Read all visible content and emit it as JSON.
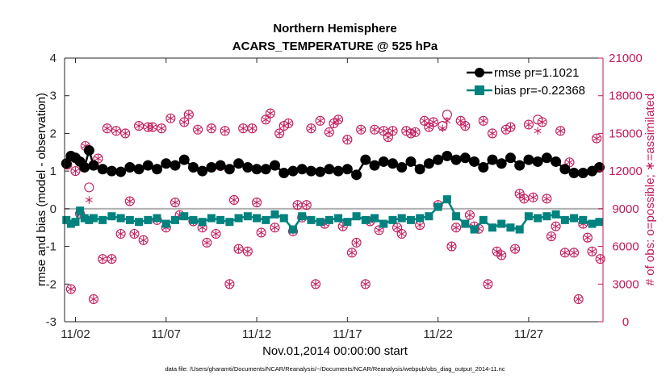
{
  "colors": {
    "rmse": "#000000",
    "bias": "#00827f",
    "obs": "#c2185b",
    "zero_line": "#b0b0b0",
    "axis": "#262626"
  },
  "chart_data": {
    "type": "line",
    "title": "Northern Hemisphere",
    "subtitle": "ACARS_TEMPERATURE @ 525 hPa",
    "xlabel": "Nov.01,2014 00:00:00 start",
    "ylabel": "rmse and bias (model - observation)",
    "ylabel_right": "# of obs: o=possible; ∗=assimilated",
    "footnote": "data file: /Users/gharamti/Documents/NCAR/Reanalysis/~/Documents/NCAR/Reanalysis/webpub/obs_diag_output_2014-11.nc",
    "x_unit": "days since Nov.01,2014 00:00:00",
    "xlim": [
      0.4,
      30.1
    ],
    "ylim": [
      -3,
      4
    ],
    "y2lim": [
      0,
      21000
    ],
    "x_ticks": [
      1,
      6,
      11,
      16,
      21,
      26
    ],
    "x_tick_labels": [
      "11/02",
      "11/07",
      "11/12",
      "11/17",
      "11/22",
      "11/27"
    ],
    "y_ticks": [
      -3,
      -2,
      -1,
      0,
      1,
      2,
      3,
      4
    ],
    "y_tick_labels": [
      "-3",
      "-2",
      "-1",
      "0",
      "1",
      "2",
      "3",
      "4"
    ],
    "y2_ticks": [
      0,
      3000,
      6000,
      9000,
      12000,
      15000,
      18000,
      21000
    ],
    "y2_tick_labels": [
      "0",
      "3000",
      "6000",
      "9000",
      "12000",
      "15000",
      "18000",
      "21000"
    ],
    "legend": {
      "location": "top-right",
      "entries": [
        "rmse pr=1.1021",
        "bias pr=-0.22368"
      ]
    },
    "series": [
      {
        "name": "rmse pr=1.1021",
        "marker": "circle",
        "x": [
          0.5,
          0.75,
          1.0,
          1.25,
          1.5,
          1.75,
          2.0,
          2.5,
          3.0,
          3.5,
          4.0,
          4.5,
          5.0,
          5.5,
          6.0,
          6.5,
          7.0,
          7.5,
          8.0,
          8.5,
          9.0,
          9.5,
          10.0,
          10.5,
          11.0,
          11.5,
          12.0,
          12.5,
          13.0,
          13.5,
          14.0,
          14.5,
          15.0,
          15.5,
          16.0,
          16.5,
          17.0,
          17.5,
          18.0,
          18.5,
          19.0,
          19.5,
          20.0,
          20.5,
          21.0,
          21.5,
          22.0,
          22.5,
          23.0,
          23.5,
          24.0,
          24.5,
          25.0,
          25.5,
          26.0,
          26.5,
          27.0,
          27.5,
          28.0,
          28.5,
          29.0,
          29.5,
          29.9
        ],
        "values": [
          1.2,
          1.4,
          1.35,
          1.25,
          1.1,
          1.55,
          1.15,
          1.05,
          1.0,
          0.98,
          1.1,
          1.05,
          1.15,
          1.05,
          1.2,
          1.15,
          1.3,
          1.1,
          1.0,
          1.1,
          1.15,
          1.05,
          1.2,
          1.1,
          1.05,
          1.05,
          1.15,
          0.95,
          1.0,
          1.05,
          1.0,
          0.98,
          1.05,
          1.0,
          1.05,
          0.9,
          1.3,
          1.15,
          1.25,
          1.2,
          1.1,
          1.25,
          1.05,
          1.2,
          1.3,
          1.4,
          1.3,
          1.35,
          1.25,
          1.1,
          1.3,
          1.2,
          1.35,
          1.15,
          1.3,
          1.25,
          1.35,
          1.25,
          1.05,
          0.95,
          0.95,
          1.0,
          1.1
        ]
      },
      {
        "name": "bias pr=-0.22368",
        "marker": "square",
        "x": [
          0.5,
          0.75,
          1.0,
          1.25,
          1.5,
          1.75,
          2.0,
          2.5,
          3.0,
          3.5,
          4.0,
          4.5,
          5.0,
          5.5,
          6.0,
          6.5,
          7.0,
          7.5,
          8.0,
          8.5,
          9.0,
          9.5,
          10.0,
          10.5,
          11.0,
          11.5,
          12.0,
          12.5,
          13.0,
          13.5,
          14.0,
          14.5,
          15.0,
          15.5,
          16.0,
          16.5,
          17.0,
          17.5,
          18.0,
          18.5,
          19.0,
          19.5,
          20.0,
          20.5,
          21.0,
          21.5,
          22.0,
          22.5,
          23.0,
          23.5,
          24.0,
          24.5,
          25.0,
          25.5,
          26.0,
          26.5,
          27.0,
          27.5,
          28.0,
          28.5,
          29.0,
          29.5,
          29.9
        ],
        "values": [
          -0.3,
          -0.4,
          -0.35,
          -0.05,
          -0.25,
          -0.3,
          -0.25,
          -0.3,
          -0.2,
          -0.25,
          -0.3,
          -0.35,
          -0.3,
          -0.25,
          -0.4,
          -0.3,
          -0.2,
          -0.3,
          -0.35,
          -0.25,
          -0.3,
          -0.35,
          -0.25,
          -0.2,
          -0.25,
          -0.3,
          -0.15,
          -0.25,
          -0.55,
          -0.2,
          -0.3,
          -0.35,
          -0.3,
          -0.25,
          -0.35,
          -0.2,
          -0.3,
          -0.25,
          -0.4,
          -0.3,
          -0.25,
          -0.3,
          -0.25,
          -0.2,
          0.05,
          0.25,
          -0.2,
          -0.4,
          -0.55,
          -0.3,
          -0.5,
          -0.4,
          -0.5,
          -0.55,
          -0.2,
          -0.25,
          -0.2,
          -0.15,
          -0.3,
          -0.25,
          -0.3,
          -0.4,
          -0.35
        ]
      },
      {
        "name": "# of obs possible",
        "marker": "circle-open",
        "axis": "right",
        "x": [
          0.55,
          0.75,
          1.0,
          1.25,
          1.55,
          1.75,
          2.0,
          2.25,
          2.5,
          2.75,
          3.0,
          3.25,
          3.5,
          3.75,
          4.0,
          4.25,
          4.5,
          4.75,
          5.0,
          5.25,
          5.5,
          5.75,
          6.0,
          6.25,
          6.5,
          6.75,
          7.0,
          7.25,
          7.5,
          7.75,
          8.0,
          8.25,
          8.5,
          8.75,
          9.0,
          9.25,
          9.5,
          9.75,
          10.0,
          10.25,
          10.5,
          10.75,
          11.0,
          11.25,
          11.5,
          11.75,
          12.0,
          12.25,
          12.5,
          12.75,
          13.0,
          13.25,
          13.5,
          13.75,
          14.0,
          14.25,
          14.5,
          14.75,
          15.0,
          15.25,
          15.5,
          15.75,
          16.0,
          16.25,
          16.5,
          16.75,
          17.0,
          17.25,
          17.5,
          17.75,
          18.0,
          18.25,
          18.5,
          18.75,
          19.0,
          19.25,
          19.5,
          19.75,
          20.0,
          20.25,
          20.5,
          20.75,
          21.0,
          21.25,
          21.5,
          21.75,
          22.0,
          22.25,
          22.5,
          22.75,
          23.0,
          23.25,
          23.5,
          23.75,
          24.0,
          24.25,
          24.5,
          24.75,
          25.0,
          25.25,
          25.5,
          25.75,
          26.0,
          26.25,
          26.5,
          26.75,
          27.0,
          27.25,
          27.5,
          27.75,
          28.0,
          28.25,
          28.5,
          28.75,
          29.0,
          29.25,
          29.5,
          29.75,
          29.95
        ],
        "values": [
          12500,
          2600,
          12000,
          8600,
          14000,
          10700,
          1800,
          13000,
          5000,
          15400,
          5000,
          15200,
          7000,
          15000,
          9600,
          7000,
          15600,
          6500,
          15500,
          15500,
          8100,
          15400,
          7500,
          16200,
          9500,
          8500,
          15900,
          16500,
          8000,
          15300,
          7500,
          6300,
          15400,
          7000,
          12400,
          15200,
          3000,
          9700,
          5800,
          15400,
          5600,
          15400,
          9500,
          7100,
          16100,
          16600,
          7500,
          15000,
          15600,
          15800,
          7200,
          9300,
          8300,
          9300,
          15400,
          3000,
          16000,
          7800,
          15100,
          15800,
          16100,
          7600,
          14500,
          5500,
          6300,
          15300,
          3000,
          8000,
          15300,
          7300,
          15200,
          14700,
          15200,
          7500,
          7000,
          15200,
          15000,
          15100,
          7700,
          16000,
          15500,
          15900,
          9300,
          15600,
          16500,
          6000,
          7500,
          16000,
          15600,
          8500,
          7600,
          7400,
          16000,
          3000,
          15000,
          5600,
          5300,
          15300,
          15500,
          5800,
          10200,
          9800,
          15700,
          9900,
          16100,
          15900,
          9800,
          6800,
          7600,
          15200,
          5500,
          12700,
          5500,
          1800,
          7800,
          6700,
          5600,
          14600,
          5000
        ]
      },
      {
        "name": "# of obs assimilated",
        "marker": "asterisk",
        "axis": "right",
        "x": [
          0.55,
          0.75,
          1.0,
          1.25,
          1.55,
          1.75,
          2.0,
          2.25,
          2.5,
          2.75,
          3.0,
          3.25,
          3.5,
          3.75,
          4.0,
          4.25,
          4.5,
          4.75,
          5.0,
          5.25,
          5.5,
          5.75,
          6.0,
          6.25,
          6.5,
          6.75,
          7.0,
          7.25,
          7.5,
          7.75,
          8.0,
          8.25,
          8.5,
          8.75,
          9.0,
          9.25,
          9.5,
          9.75,
          10.0,
          10.25,
          10.5,
          10.75,
          11.0,
          11.25,
          11.5,
          11.75,
          12.0,
          12.25,
          12.5,
          12.75,
          13.0,
          13.25,
          13.5,
          13.75,
          14.0,
          14.25,
          14.5,
          14.75,
          15.0,
          15.25,
          15.5,
          15.75,
          16.0,
          16.25,
          16.5,
          16.75,
          17.0,
          17.25,
          17.5,
          17.75,
          18.0,
          18.25,
          18.5,
          18.75,
          19.0,
          19.25,
          19.5,
          19.75,
          20.0,
          20.25,
          20.5,
          20.75,
          21.0,
          21.25,
          21.5,
          21.75,
          22.0,
          22.25,
          22.5,
          22.75,
          23.0,
          23.25,
          23.5,
          23.75,
          24.0,
          24.25,
          24.5,
          24.75,
          25.0,
          25.25,
          25.5,
          25.75,
          26.0,
          26.25,
          26.5,
          26.75,
          27.0,
          27.25,
          27.5,
          27.75,
          28.0,
          28.25,
          28.5,
          28.75,
          29.0,
          29.25,
          29.5,
          29.75,
          29.95
        ],
        "values": [
          12500,
          2600,
          12000,
          8600,
          14000,
          9700,
          1800,
          13000,
          5000,
          15400,
          5000,
          15200,
          7000,
          15000,
          9600,
          7000,
          15600,
          6500,
          15500,
          15500,
          8100,
          15400,
          7500,
          16200,
          9500,
          8500,
          15900,
          16500,
          8000,
          15300,
          7500,
          6300,
          15400,
          7000,
          12400,
          15200,
          3000,
          9700,
          5800,
          15400,
          5600,
          15400,
          9500,
          7100,
          16100,
          16600,
          7500,
          15000,
          15600,
          15800,
          7200,
          9300,
          8300,
          9300,
          15400,
          3000,
          16000,
          7800,
          15100,
          15800,
          16100,
          7600,
          14500,
          5500,
          6300,
          15300,
          3000,
          8000,
          15300,
          7300,
          15200,
          14700,
          15200,
          7500,
          7000,
          15200,
          15000,
          15100,
          7700,
          16000,
          15500,
          15900,
          9300,
          15400,
          16000,
          6000,
          7500,
          16000,
          15600,
          8500,
          7600,
          7400,
          16000,
          3000,
          15000,
          5600,
          5300,
          15300,
          15500,
          5800,
          10200,
          9800,
          15700,
          9900,
          15200,
          15900,
          9800,
          6800,
          7600,
          15200,
          5500,
          12700,
          5500,
          1800,
          7800,
          6700,
          5600,
          14600,
          5000
        ]
      }
    ]
  }
}
